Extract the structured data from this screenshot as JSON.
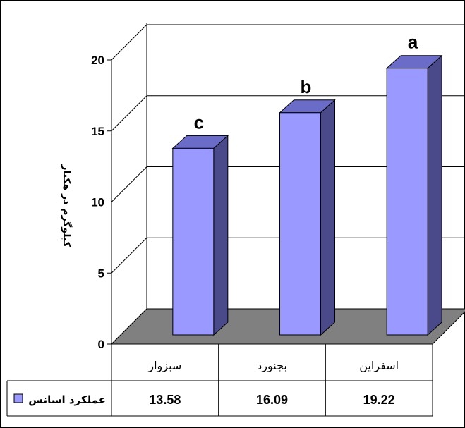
{
  "chart_data": {
    "type": "bar",
    "categories": [
      "سبزوار",
      "بجنورد",
      "اسفراین"
    ],
    "values": [
      13.58,
      16.09,
      19.22
    ],
    "significance": [
      "c",
      "b",
      "a"
    ],
    "ylabel": "کیلوگرم در هکتار",
    "ylim": [
      0,
      20
    ],
    "yticks": [
      0,
      5,
      10,
      15,
      20
    ],
    "legend": "عملکرد اسانس",
    "style": "3d",
    "grid": true,
    "data_table": true,
    "colors": {
      "bar_front": "#9999ff",
      "bar_side": "#4a4a8a",
      "bar_top": "#6b6bc8",
      "floor": "#808080"
    }
  }
}
